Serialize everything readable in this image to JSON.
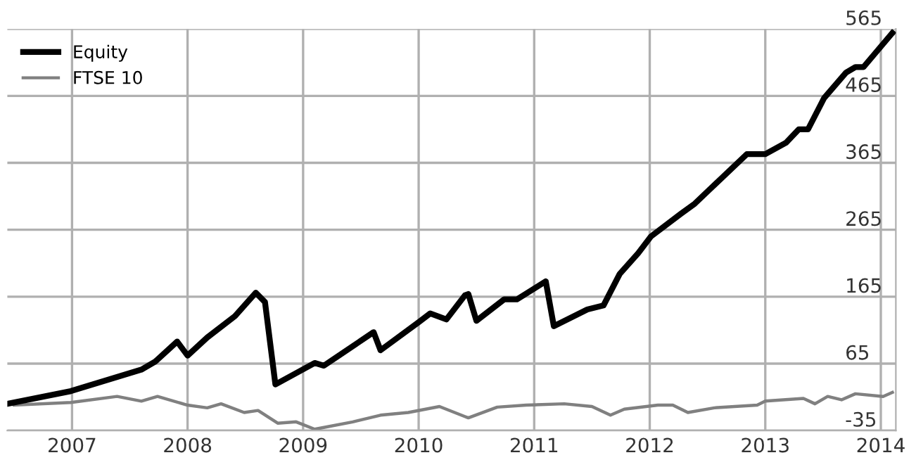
{
  "chart_data": {
    "type": "line",
    "xlim": [
      2006.44,
      2014.13
    ],
    "xticks": [
      2007,
      2008,
      2009,
      2010,
      2011,
      2012,
      2013,
      2014
    ],
    "ylim": [
      -35,
      565
    ],
    "yticks": [
      -35,
      65,
      165,
      265,
      365,
      465,
      565
    ],
    "grid": true,
    "legend": "top left",
    "marker": "none",
    "line_style": "solid",
    "series": [
      {
        "name": "Equity",
        "color": "#000000",
        "x": [
          2006.44,
          2006.99,
          2007.6,
          2007.72,
          2007.91,
          2008.0,
          2008.17,
          2008.41,
          2008.59,
          2008.67,
          2008.76,
          2009.1,
          2009.18,
          2009.61,
          2009.67,
          2010.0,
          2010.1,
          2010.24,
          2010.4,
          2010.43,
          2010.5,
          2010.74,
          2010.85,
          2011.1,
          2011.17,
          2011.46,
          2011.6,
          2011.74,
          2011.9,
          2012.01,
          2012.27,
          2012.39,
          2012.84,
          2013.0,
          2013.18,
          2013.29,
          2013.37,
          2013.51,
          2013.7,
          2013.78,
          2013.85,
          2014.1
        ],
        "values": [
          5,
          24,
          56,
          68,
          98,
          77,
          104,
          136,
          171,
          157,
          34,
          66,
          62,
          112,
          85,
          127,
          140,
          131,
          167,
          169,
          129,
          161,
          161,
          188,
          121,
          146,
          152,
          199,
          230,
          255,
          289,
          304,
          378,
          378,
          395,
          415,
          415,
          462,
          500,
          508,
          508,
          559
        ]
      },
      {
        "name": "FTSE 10",
        "color": "#808080",
        "x": [
          2006.5,
          2006.99,
          2007.39,
          2007.6,
          2007.74,
          2008.0,
          2008.17,
          2008.29,
          2008.49,
          2008.61,
          2008.78,
          2008.94,
          2009.1,
          2009.43,
          2009.67,
          2009.91,
          2010.18,
          2010.4,
          2010.43,
          2010.68,
          2010.93,
          2011.26,
          2011.5,
          2011.66,
          2011.78,
          2012.07,
          2012.2,
          2012.33,
          2012.56,
          2012.93,
          2013.0,
          2013.33,
          2013.43,
          2013.54,
          2013.66,
          2013.78,
          2014.02,
          2014.1
        ],
        "values": [
          3,
          7,
          16,
          9,
          16,
          3,
          -1,
          5,
          -8,
          -5,
          -24,
          -22,
          -33,
          -22,
          -12,
          -8,
          1,
          -14,
          -16,
          0,
          3,
          5,
          1,
          -12,
          -3,
          3,
          3,
          -8,
          -1,
          3,
          9,
          13,
          5,
          16,
          11,
          20,
          16,
          22
        ]
      }
    ]
  }
}
